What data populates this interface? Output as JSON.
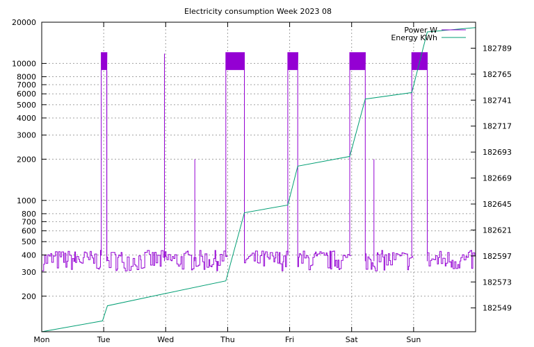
{
  "chart_data": {
    "type": "line",
    "title": "Electricity consumption Week 2023 08",
    "x_categories": [
      "Mon",
      "Tue",
      "Wed",
      "Thu",
      "Fri",
      "Sat",
      "Sun"
    ],
    "xlim": [
      0,
      7
    ],
    "y_left": {
      "scale": "log",
      "ylim": [
        110,
        20000
      ],
      "ticks": [
        200,
        300,
        400,
        500,
        600,
        700,
        800,
        1000,
        2000,
        3000,
        4000,
        5000,
        6000,
        7000,
        8000,
        10000,
        20000
      ],
      "tick_labels": [
        "200",
        "300",
        "400",
        "500",
        "600",
        "700",
        "800",
        "1000",
        "2000",
        "3000",
        "4000",
        "5000",
        "6000",
        "7000",
        "8000",
        "10000",
        "20000"
      ]
    },
    "y_right": {
      "scale": "linear",
      "ylim": [
        182527,
        182813
      ],
      "ticks": [
        182549,
        182573,
        182597,
        182621,
        182645,
        182669,
        182693,
        182717,
        182741,
        182765,
        182789
      ],
      "tick_labels": [
        "182549",
        "182573",
        "182597",
        "182621",
        "182645",
        "182669",
        "182693",
        "182717",
        "182741",
        "182765",
        "182789"
      ]
    },
    "grid": true,
    "legend_position": "top-right",
    "series": [
      {
        "name": "Power W",
        "color": "#9400d3",
        "axis": "left",
        "base_level": 360,
        "bursts": [
          {
            "start": 0.96,
            "end": 1.05,
            "upper": 12000,
            "lower": 9000
          },
          {
            "start": 2.97,
            "end": 3.27,
            "upper": 12000,
            "lower": 9000
          },
          {
            "start": 3.97,
            "end": 4.13,
            "upper": 12000,
            "lower": 9000
          },
          {
            "start": 4.97,
            "end": 5.22,
            "upper": 12000,
            "lower": 9000
          },
          {
            "start": 5.97,
            "end": 6.22,
            "upper": 12000,
            "lower": 9000
          }
        ],
        "spikes": [
          {
            "x": 1.05,
            "y": 8800
          },
          {
            "x": 1.98,
            "y": 11800
          },
          {
            "x": 2.47,
            "y": 2000
          },
          {
            "x": 5.36,
            "y": 2000
          }
        ]
      },
      {
        "name": "Energy KWh",
        "color": "#009e73",
        "axis": "right",
        "x": [
          0,
          0.98,
          1.06,
          1.97,
          2.97,
          3.27,
          3.97,
          4.13,
          4.97,
          5.22,
          5.97,
          6.22,
          7.0
        ],
        "y": [
          182527,
          182537,
          182551,
          182562,
          182574,
          182637,
          182644,
          182680,
          182689,
          182742,
          182748,
          182804,
          182808
        ]
      }
    ]
  }
}
